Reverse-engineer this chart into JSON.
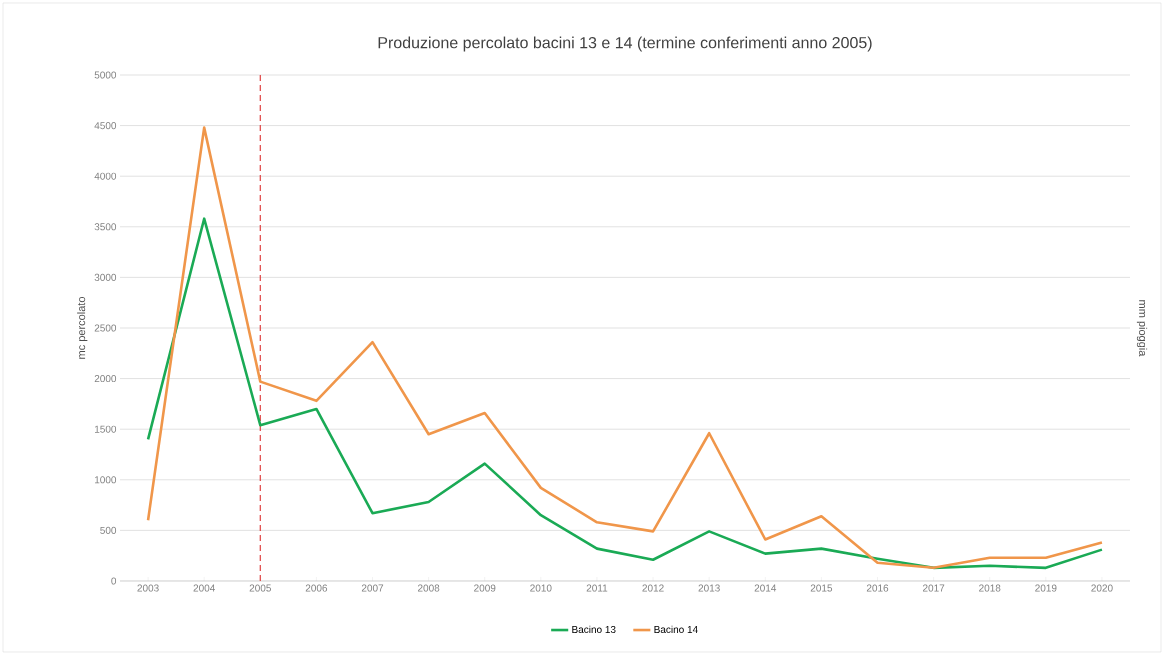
{
  "chart_data": {
    "type": "line",
    "title": "Produzione percolato bacini 13 e 14 (termine conferimenti anno 2005)",
    "ylabel": "mc percolato",
    "y2label": "mm pioggia",
    "x": [
      2003,
      2004,
      2005,
      2006,
      2007,
      2008,
      2009,
      2010,
      2011,
      2012,
      2013,
      2014,
      2015,
      2016,
      2017,
      2018,
      2019,
      2020
    ],
    "xlim": [
      2002.5,
      2020.5
    ],
    "xticks": [
      2003,
      2004,
      2005,
      2006,
      2007,
      2008,
      2009,
      2010,
      2011,
      2012,
      2013,
      2014,
      2015,
      2016,
      2017,
      2018,
      2019,
      2020
    ],
    "ylim": [
      0,
      5000
    ],
    "yticks": [
      0,
      500,
      1000,
      1500,
      2000,
      2500,
      3000,
      3500,
      4000,
      4500,
      5000
    ],
    "series": [
      {
        "name": "Bacino 13",
        "color": "#1aaa55",
        "values": [
          1400,
          3580,
          1540,
          1700,
          670,
          780,
          1160,
          650,
          320,
          210,
          490,
          270,
          320,
          220,
          130,
          150,
          130,
          310
        ]
      },
      {
        "name": "Bacino 14",
        "color": "#f0964a",
        "values": [
          600,
          4480,
          1970,
          1780,
          2360,
          1450,
          1660,
          920,
          580,
          490,
          1460,
          410,
          640,
          180,
          130,
          230,
          230,
          380
        ]
      }
    ],
    "ref_lines": [
      {
        "axis": "x",
        "value": 2005,
        "color": "#e04040",
        "line_style": "dashed"
      }
    ],
    "grid": "y",
    "legend": "bottom",
    "line_style": "solid",
    "marker": "none"
  }
}
